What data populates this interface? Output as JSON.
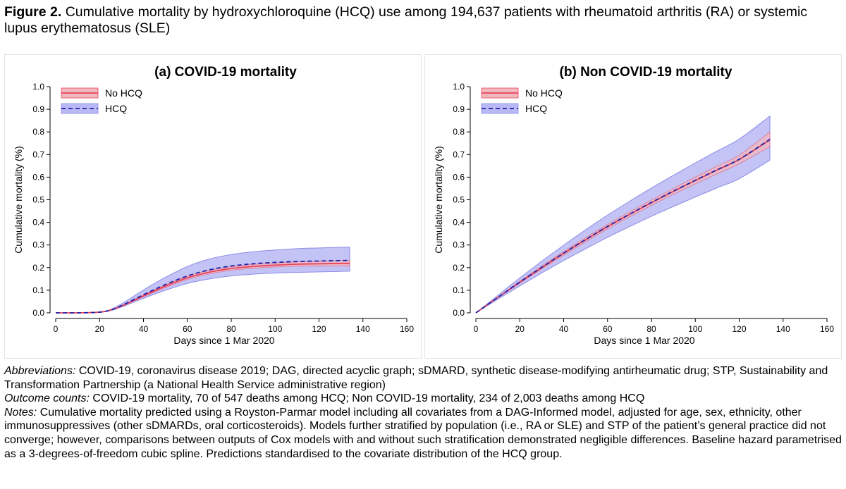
{
  "figure": {
    "label": "Figure 2.",
    "caption": "Cumulative mortality by hydroxychloroquine (HCQ) use among 194,637 patients with rheumatoid arthritis (RA) or systemic lupus erythematosus (SLE)"
  },
  "colors": {
    "no_hcq_line": "#e8435a",
    "no_hcq_band": "#f2b8c0",
    "hcq_line": "#2222aa",
    "hcq_band": "#b9b9f5",
    "hcq_band_edge": "#8c8ce8"
  },
  "chart_data": [
    {
      "type": "line",
      "title": "(a) COVID-19 mortality",
      "xlabel": "Days since 1 Mar 2020",
      "ylabel": "Cumulative mortality (%)",
      "xlim": [
        0,
        160
      ],
      "ylim": [
        0,
        1.0
      ],
      "xticks": [
        "0",
        "20",
        "40",
        "60",
        "80",
        "100",
        "120",
        "140",
        "160"
      ],
      "yticks": [
        "0.0",
        "0.1",
        "0.2",
        "0.3",
        "0.4",
        "0.5",
        "0.6",
        "0.7",
        "0.8",
        "0.9",
        "1.0"
      ],
      "legend_position": "top-left",
      "x": [
        0,
        10,
        20,
        25,
        30,
        35,
        40,
        45,
        50,
        60,
        70,
        80,
        90,
        100,
        110,
        120,
        134
      ],
      "series": [
        {
          "name": "No HCQ",
          "style": "solid",
          "values": [
            0,
            0,
            0.003,
            0.012,
            0.03,
            0.052,
            0.075,
            0.097,
            0.118,
            0.155,
            0.18,
            0.196,
            0.205,
            0.211,
            0.215,
            0.217,
            0.219
          ],
          "lower": [
            0,
            0,
            0.003,
            0.011,
            0.028,
            0.049,
            0.071,
            0.092,
            0.112,
            0.148,
            0.172,
            0.188,
            0.197,
            0.203,
            0.206,
            0.207,
            0.207
          ],
          "upper": [
            0,
            0,
            0.004,
            0.013,
            0.032,
            0.055,
            0.079,
            0.102,
            0.124,
            0.162,
            0.188,
            0.204,
            0.214,
            0.22,
            0.225,
            0.228,
            0.232
          ]
        },
        {
          "name": "HCQ",
          "style": "dashed",
          "values": [
            0,
            0,
            0.003,
            0.012,
            0.032,
            0.056,
            0.08,
            0.103,
            0.125,
            0.163,
            0.19,
            0.207,
            0.217,
            0.223,
            0.227,
            0.229,
            0.232
          ],
          "lower": [
            0,
            0,
            0.002,
            0.01,
            0.026,
            0.045,
            0.064,
            0.083,
            0.1,
            0.13,
            0.15,
            0.163,
            0.171,
            0.176,
            0.179,
            0.181,
            0.184
          ],
          "upper": [
            0,
            0,
            0.004,
            0.015,
            0.04,
            0.07,
            0.101,
            0.13,
            0.157,
            0.205,
            0.238,
            0.258,
            0.27,
            0.278,
            0.284,
            0.287,
            0.291
          ]
        }
      ]
    },
    {
      "type": "line",
      "title": "(b) Non COVID-19 mortality",
      "xlabel": "Days since 1 Mar 2020",
      "ylabel": "Cumulative mortality (%)",
      "xlim": [
        0,
        160
      ],
      "ylim": [
        0,
        1.0
      ],
      "xticks": [
        "0",
        "20",
        "40",
        "60",
        "80",
        "100",
        "120",
        "140",
        "160"
      ],
      "yticks": [
        "0.0",
        "0.1",
        "0.2",
        "0.3",
        "0.4",
        "0.5",
        "0.6",
        "0.7",
        "0.8",
        "0.9",
        "1.0"
      ],
      "legend_position": "top-left",
      "x": [
        0,
        10,
        20,
        30,
        40,
        50,
        60,
        70,
        80,
        90,
        100,
        110,
        120,
        134
      ],
      "series": [
        {
          "name": "No HCQ",
          "style": "solid",
          "values": [
            0,
            0.068,
            0.135,
            0.2,
            0.263,
            0.323,
            0.381,
            0.435,
            0.487,
            0.537,
            0.585,
            0.632,
            0.678,
            0.765
          ],
          "lower": [
            0,
            0.066,
            0.131,
            0.194,
            0.255,
            0.314,
            0.371,
            0.424,
            0.475,
            0.524,
            0.57,
            0.615,
            0.659,
            0.735
          ],
          "upper": [
            0,
            0.07,
            0.139,
            0.206,
            0.271,
            0.332,
            0.391,
            0.446,
            0.499,
            0.55,
            0.6,
            0.649,
            0.697,
            0.8
          ]
        },
        {
          "name": "HCQ",
          "style": "dashed",
          "values": [
            0,
            0.068,
            0.136,
            0.201,
            0.264,
            0.324,
            0.382,
            0.436,
            0.488,
            0.538,
            0.586,
            0.633,
            0.679,
            0.767
          ],
          "lower": [
            0,
            0.06,
            0.119,
            0.176,
            0.231,
            0.283,
            0.334,
            0.381,
            0.427,
            0.47,
            0.512,
            0.553,
            0.593,
            0.675
          ],
          "upper": [
            0,
            0.077,
            0.154,
            0.228,
            0.299,
            0.367,
            0.432,
            0.493,
            0.552,
            0.608,
            0.663,
            0.716,
            0.768,
            0.87
          ]
        }
      ]
    }
  ],
  "notes": {
    "abbreviations_label": "Abbreviations:",
    "abbreviations_text": " COVID-19, coronavirus disease 2019; DAG, directed acyclic graph; sDMARD, synthetic disease-modifying antirheumatic drug; STP, Sustainability and Transformation Partnership (a National Health Service administrative region)",
    "outcome_label": "Outcome counts:",
    "outcome_text": " COVID-19 mortality, 70 of 547 deaths among HCQ; Non COVID-19 mortality, 234 of 2,003 deaths among HCQ",
    "notes_label": "Notes:",
    "notes_text": " Cumulative mortality predicted using a Royston-Parmar model including all covariates from a DAG-Informed model, adjusted for age, sex, ethnicity, other immunosuppressives (other sDMARDs, oral corticosteroids). Models further stratified by population (i.e., RA or SLE) and STP of the patient’s general practice did not converge; however, comparisons between outputs of Cox models with and without such stratification demonstrated negligible differences. Baseline hazard parametrised as a 3-degrees-of-freedom cubic spline. Predictions standardised to the covariate distribution of the HCQ group."
  }
}
